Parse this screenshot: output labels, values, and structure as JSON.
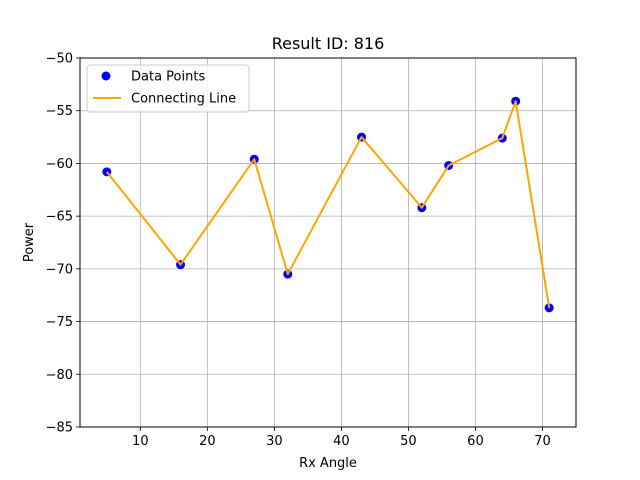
{
  "chart_data": {
    "type": "scatter",
    "title": "Result ID: 816",
    "xlabel": "Rx Angle",
    "ylabel": "Power",
    "xlim": [
      1.0,
      75.0
    ],
    "ylim": [
      -85,
      -50
    ],
    "xticks": [
      10,
      20,
      30,
      40,
      50,
      60,
      70
    ],
    "yticks": [
      -50,
      -55,
      -60,
      -65,
      -70,
      -75,
      -80,
      -85
    ],
    "ytick_labels": [
      "−50",
      "−55",
      "−60",
      "−65",
      "−70",
      "−75",
      "−80",
      "−85"
    ],
    "grid": true,
    "legend_position": "top-left",
    "series": [
      {
        "name": "Data Points",
        "kind": "scatter",
        "color": "#0000ff",
        "x": [
          5,
          16,
          27,
          32,
          43,
          52,
          56,
          64,
          66,
          71
        ],
        "y": [
          -60.8,
          -69.6,
          -59.6,
          -70.5,
          -57.5,
          -64.2,
          -60.2,
          -57.6,
          -54.1,
          -73.7
        ]
      },
      {
        "name": "Connecting Line",
        "kind": "line",
        "color": "#ffa500",
        "x": [
          5,
          16,
          27,
          32,
          43,
          52,
          56,
          64,
          66,
          71
        ],
        "y": [
          -60.8,
          -69.6,
          -59.6,
          -70.5,
          -57.5,
          -64.2,
          -60.2,
          -57.6,
          -54.1,
          -73.7
        ]
      }
    ]
  }
}
